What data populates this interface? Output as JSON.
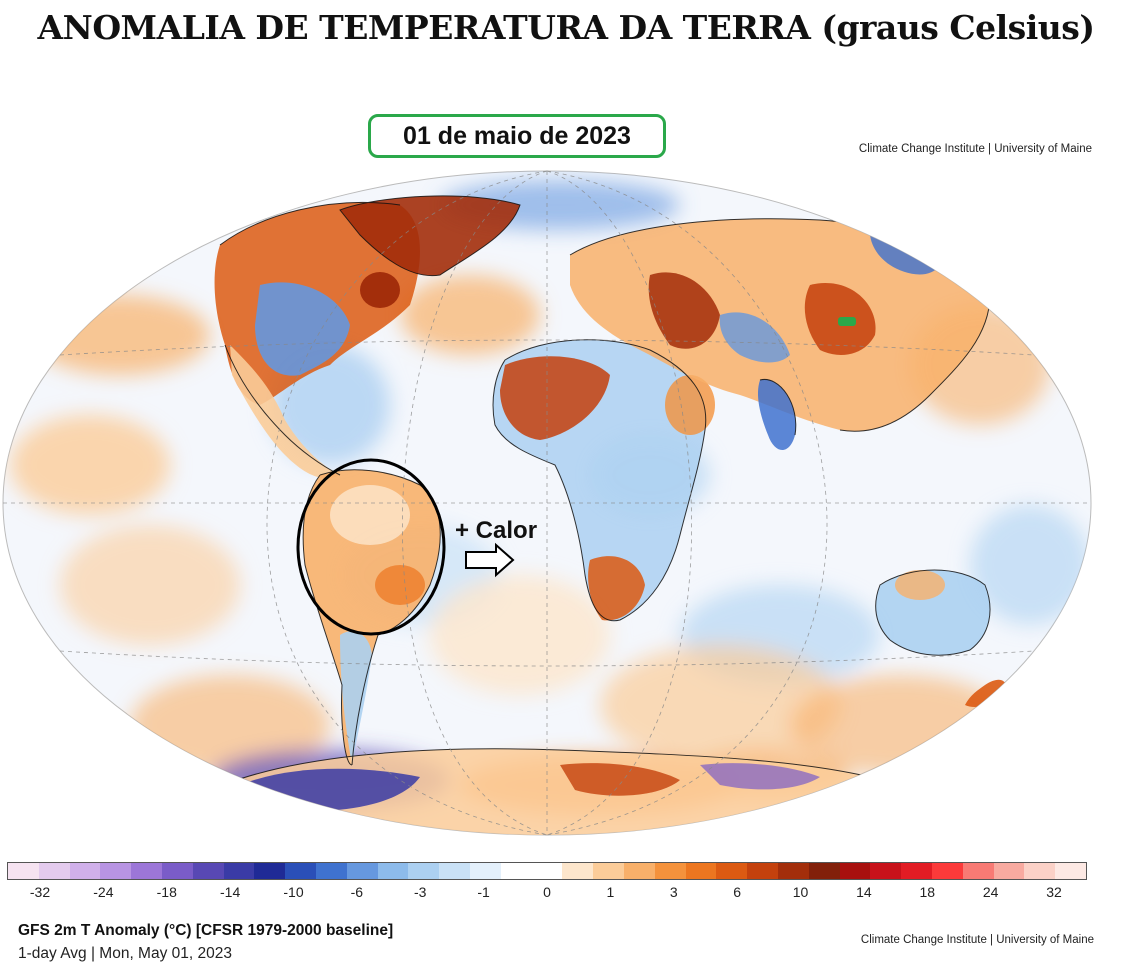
{
  "title": "ANOMALIA DE TEMPERATURA DA TERRA (graus Celsius)",
  "date_label": "01 de maio de 2023",
  "credit_top": "Climate Change Institute | University of Maine",
  "credit_bottom": "Climate Change Institute | University of Maine",
  "annotation": "+ Calor",
  "subtitle": "GFS 2m T Anomaly (°C) [CFSR 1979-2000 baseline]",
  "subtitle2": "1-day Avg | Mon, May 01, 2023",
  "colorbar": {
    "ticks": [
      "-32",
      "-24",
      "-18",
      "-14",
      "-10",
      "-6",
      "-3",
      "-1",
      "0",
      "1",
      "3",
      "6",
      "10",
      "14",
      "18",
      "24",
      "32"
    ],
    "colors": [
      "#f6e3f1",
      "#e4cbee",
      "#d0b0ea",
      "#b894e3",
      "#9c76d8",
      "#7a5cc8",
      "#5848b4",
      "#3a3ba6",
      "#1f2a96",
      "#2a4fb8",
      "#3f72cf",
      "#6698df",
      "#8dbbeb",
      "#acd0f1",
      "#c9e1f6",
      "#e4f0fb",
      "#ffffff",
      "#ffffff",
      "#fde6cc",
      "#fbcc99",
      "#f8b06a",
      "#f4923c",
      "#ec7620",
      "#dc5a12",
      "#c4410d",
      "#a32e0b",
      "#82200a",
      "#a8100e",
      "#c8121a",
      "#e21c24",
      "#fb3a3a",
      "#f87a74",
      "#f8aaa0",
      "#fbd1c7",
      "#fde9e4"
    ]
  },
  "map": {
    "ocean_color": "#f3f6fb",
    "warm_highlight_region": "South America (Brazil)",
    "circle_color": "#000000",
    "marker_color": "#2aa84a"
  }
}
